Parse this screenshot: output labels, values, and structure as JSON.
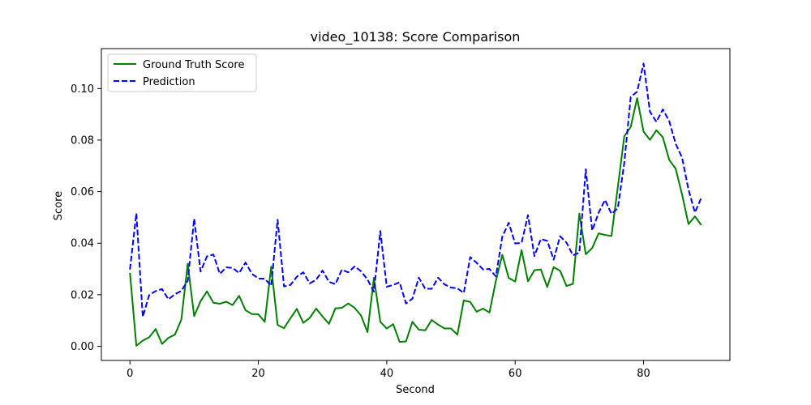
{
  "chart_data": {
    "type": "line",
    "title": "video_10138: Score Comparison",
    "xlabel": "Second",
    "ylabel": "Score",
    "xlim": [
      -4.45,
      93.45
    ],
    "ylim": [
      -0.0055,
      0.1155
    ],
    "xticks": [
      0,
      20,
      40,
      60,
      80
    ],
    "yticks": [
      0.0,
      0.02,
      0.04,
      0.06,
      0.08,
      0.1
    ],
    "ytick_labels": [
      "0.00",
      "0.02",
      "0.04",
      "0.06",
      "0.08",
      "0.10"
    ],
    "grid": false,
    "legend_position": "top-left",
    "x": [
      0,
      1,
      2,
      3,
      4,
      5,
      6,
      7,
      8,
      9,
      10,
      11,
      12,
      13,
      14,
      15,
      16,
      17,
      18,
      19,
      20,
      21,
      22,
      23,
      24,
      25,
      26,
      27,
      28,
      29,
      30,
      31,
      32,
      33,
      34,
      35,
      36,
      37,
      38,
      39,
      40,
      41,
      42,
      43,
      44,
      45,
      46,
      47,
      48,
      49,
      50,
      51,
      52,
      53,
      54,
      55,
      56,
      57,
      58,
      59,
      60,
      61,
      62,
      63,
      64,
      65,
      66,
      67,
      68,
      69,
      70,
      71,
      72,
      73,
      74,
      75,
      76,
      77,
      78,
      79,
      80,
      81,
      82,
      83,
      84,
      85,
      86,
      87,
      88,
      89
    ],
    "series": [
      {
        "name": "Ground Truth Score",
        "color": "#008000",
        "style": "solid",
        "values": [
          0.0285,
          0.0002,
          0.0022,
          0.0035,
          0.0067,
          0.0009,
          0.0033,
          0.0045,
          0.0103,
          0.032,
          0.0117,
          0.0175,
          0.0213,
          0.0169,
          0.0165,
          0.0173,
          0.016,
          0.0196,
          0.014,
          0.0125,
          0.0124,
          0.0095,
          0.0309,
          0.0083,
          0.007,
          0.0109,
          0.0145,
          0.0091,
          0.011,
          0.0146,
          0.0116,
          0.0087,
          0.0147,
          0.0149,
          0.0166,
          0.0149,
          0.0119,
          0.0055,
          0.0266,
          0.0095,
          0.0069,
          0.0086,
          0.0017,
          0.0019,
          0.0095,
          0.0064,
          0.0062,
          0.0102,
          0.0084,
          0.0069,
          0.0069,
          0.0045,
          0.0178,
          0.0172,
          0.0134,
          0.0146,
          0.0131,
          0.0254,
          0.0355,
          0.0265,
          0.0251,
          0.0373,
          0.0252,
          0.0295,
          0.0298,
          0.023,
          0.0307,
          0.0293,
          0.0234,
          0.0242,
          0.0515,
          0.0357,
          0.0381,
          0.0438,
          0.0432,
          0.0428,
          0.0619,
          0.0815,
          0.0851,
          0.0963,
          0.0833,
          0.0801,
          0.0838,
          0.0811,
          0.0723,
          0.0689,
          0.0589,
          0.0474,
          0.0504,
          0.047
        ]
      },
      {
        "name": "Prediction",
        "color": "#0000ff",
        "style": "dashed",
        "values": [
          0.0298,
          0.0516,
          0.0114,
          0.0199,
          0.0214,
          0.0222,
          0.0182,
          0.0202,
          0.0215,
          0.0254,
          0.0495,
          0.029,
          0.0349,
          0.0356,
          0.0281,
          0.0306,
          0.0304,
          0.0284,
          0.0325,
          0.0281,
          0.0263,
          0.0262,
          0.0235,
          0.0491,
          0.0232,
          0.0238,
          0.027,
          0.0287,
          0.0244,
          0.0258,
          0.0294,
          0.025,
          0.0241,
          0.0297,
          0.0287,
          0.031,
          0.0291,
          0.0259,
          0.0212,
          0.0447,
          0.0231,
          0.0238,
          0.0248,
          0.0166,
          0.0185,
          0.0266,
          0.0223,
          0.0223,
          0.0266,
          0.024,
          0.0228,
          0.0225,
          0.0207,
          0.0346,
          0.0324,
          0.0298,
          0.03,
          0.0271,
          0.0425,
          0.0479,
          0.0399,
          0.0401,
          0.0509,
          0.035,
          0.0416,
          0.0409,
          0.0336,
          0.0427,
          0.0402,
          0.0353,
          0.0363,
          0.0687,
          0.0449,
          0.0518,
          0.0568,
          0.0514,
          0.0536,
          0.0712,
          0.0967,
          0.0988,
          0.1097,
          0.091,
          0.0871,
          0.0919,
          0.0874,
          0.0786,
          0.0732,
          0.0608,
          0.0519,
          0.0576
        ]
      }
    ]
  }
}
